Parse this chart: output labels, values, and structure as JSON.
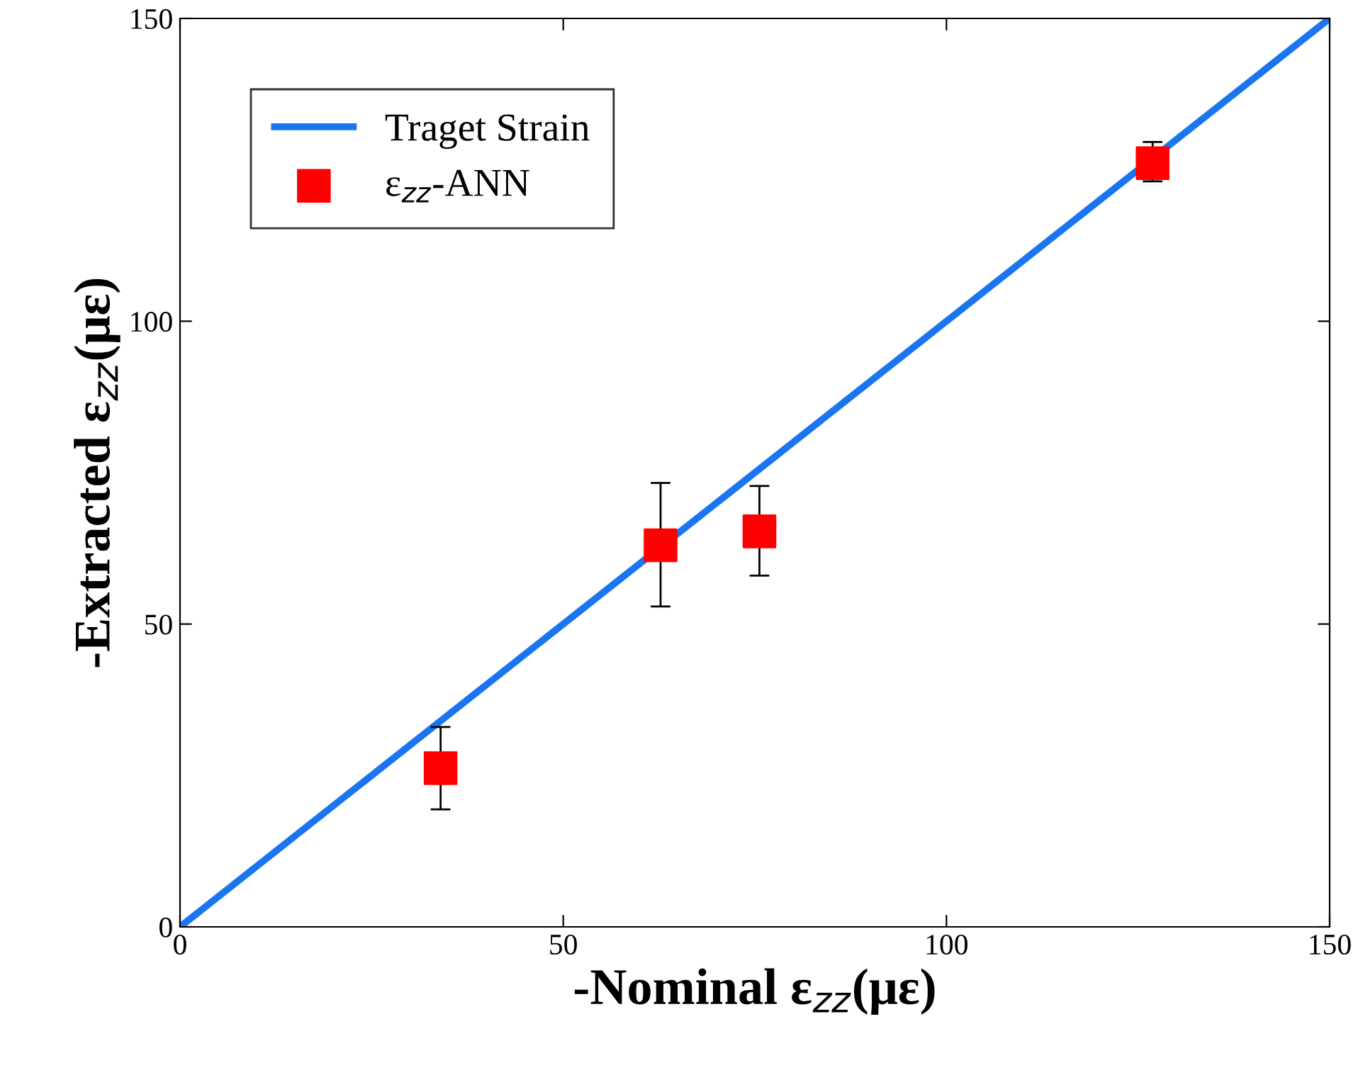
{
  "chart_data": {
    "type": "scatter",
    "xlabel": "-Nominal ε$_{zz}$(με)",
    "ylabel": "-Extracted ε$_{zz}$(με)",
    "xlim": [
      0,
      150
    ],
    "ylim": [
      0,
      150
    ],
    "xticks": [
      0,
      50,
      100,
      150
    ],
    "yticks": [
      0,
      50,
      100,
      150
    ],
    "grid": false,
    "legend": "top left",
    "series": [
      {
        "name": "Traget Strain",
        "type": "line",
        "color": "#1a75f0",
        "x": [
          0,
          150
        ],
        "values": [
          0,
          150
        ],
        "marker": "none",
        "line_style": "solid"
      },
      {
        "name": "ε$_{zz}$-ANN",
        "color": "#ff0000",
        "marker": "square",
        "x": [
          34.0,
          62.7,
          75.6,
          126.9
        ],
        "values": [
          26.2,
          63.0,
          65.3,
          126.1
        ],
        "errors": [
          [
            19.4,
            33.0
          ],
          [
            52.9,
            73.3
          ],
          [
            58.0,
            72.8
          ],
          [
            123.1,
            129.6
          ]
        ]
      }
    ]
  }
}
